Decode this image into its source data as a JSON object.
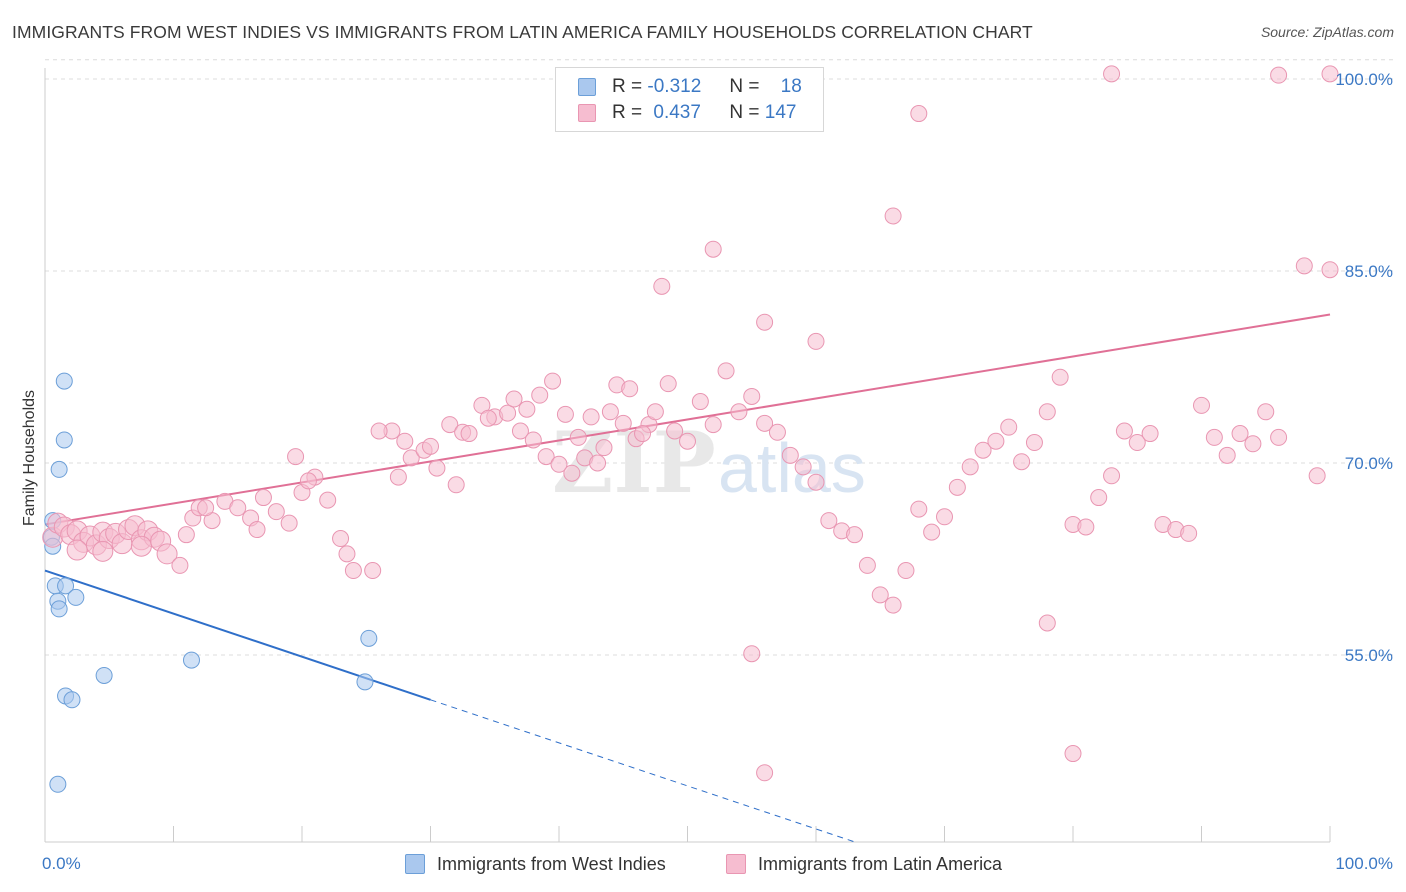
{
  "title": "IMMIGRANTS FROM WEST INDIES VS IMMIGRANTS FROM LATIN AMERICA FAMILY HOUSEHOLDS CORRELATION CHART",
  "source": "Source: ZipAtlas.com",
  "watermark": {
    "zip": "ZIP",
    "atlas": "atlas"
  },
  "colors": {
    "west_indies_fill": "#aac8ee",
    "west_indies_stroke": "#6c9fd8",
    "west_indies_line": "#2f6fc9",
    "latin_fill": "#f6bdd0",
    "latin_stroke": "#e996b2",
    "latin_line": "#e07096",
    "tick_label": "#3b78c4",
    "grid": "#dcdcdc"
  },
  "legend": {
    "rows": [
      {
        "r_label": "R =",
        "r_value": "-0.312",
        "n_label": "N =",
        "n_value": "18"
      },
      {
        "r_label": "R =",
        "r_value": "0.437",
        "n_label": "N =",
        "n_value": "147"
      }
    ]
  },
  "chart_data": {
    "type": "scatter",
    "title": "IMMIGRANTS FROM WEST INDIES VS IMMIGRANTS FROM LATIN AMERICA FAMILY HOUSEHOLDS CORRELATION CHART",
    "xlabel": "",
    "ylabel": "Family Households",
    "xlim": [
      0,
      100
    ],
    "ylim": [
      38,
      102
    ],
    "x_tick_labels": [
      "0.0%",
      "100.0%"
    ],
    "y_ticks": [
      55,
      70,
      85,
      100
    ],
    "y_tick_labels": [
      "55.0%",
      "70.0%",
      "85.0%",
      "100.0%"
    ],
    "grid": true,
    "legend_position": "top-center",
    "series": [
      {
        "name": "Immigrants from West Indies",
        "points": [
          [
            0.5,
            64.2
          ],
          [
            0.6,
            63.5
          ],
          [
            0.6,
            65.5
          ],
          [
            1.1,
            69.5
          ],
          [
            1.5,
            71.8
          ],
          [
            1.5,
            76.4
          ],
          [
            0.8,
            60.4
          ],
          [
            1.0,
            59.2
          ],
          [
            1.1,
            58.6
          ],
          [
            1.6,
            60.4
          ],
          [
            2.4,
            59.5
          ],
          [
            11.4,
            54.6
          ],
          [
            4.6,
            53.4
          ],
          [
            1.6,
            51.8
          ],
          [
            2.1,
            51.5
          ],
          [
            1.0,
            44.9
          ],
          [
            25.2,
            56.3
          ],
          [
            24.9,
            52.9
          ]
        ],
        "trend": {
          "x": [
            0,
            30
          ],
          "y": [
            61.6,
            51.5
          ],
          "dashed_to": [
            63,
            40.4
          ]
        }
      },
      {
        "name": "Immigrants from Latin America",
        "points": [
          [
            0.6,
            64.2
          ],
          [
            1.0,
            65.3
          ],
          [
            1.5,
            65.0
          ],
          [
            2.0,
            64.4
          ],
          [
            2.5,
            64.7
          ],
          [
            3.0,
            63.8
          ],
          [
            3.5,
            64.3
          ],
          [
            4.0,
            63.6
          ],
          [
            4.5,
            64.6
          ],
          [
            5.0,
            64.1
          ],
          [
            5.5,
            64.5
          ],
          [
            6.0,
            63.7
          ],
          [
            6.5,
            64.8
          ],
          [
            7.0,
            65.1
          ],
          [
            7.5,
            64.0
          ],
          [
            8.0,
            64.7
          ],
          [
            8.5,
            64.2
          ],
          [
            9.0,
            63.9
          ],
          [
            2.5,
            63.2
          ],
          [
            4.5,
            63.1
          ],
          [
            7.5,
            63.5
          ],
          [
            9.5,
            62.9
          ],
          [
            10.5,
            62.0
          ],
          [
            11.0,
            64.4
          ],
          [
            11.5,
            65.7
          ],
          [
            12.0,
            66.5
          ],
          [
            13.0,
            65.5
          ],
          [
            14.0,
            67.0
          ],
          [
            15.0,
            66.5
          ],
          [
            16.0,
            65.7
          ],
          [
            17.0,
            67.3
          ],
          [
            18.0,
            66.2
          ],
          [
            19.0,
            65.3
          ],
          [
            20.0,
            67.7
          ],
          [
            21.0,
            68.9
          ],
          [
            22.0,
            67.1
          ],
          [
            12.5,
            66.5
          ],
          [
            16.5,
            64.8
          ],
          [
            19.5,
            70.5
          ],
          [
            20.5,
            68.6
          ],
          [
            23.0,
            64.1
          ],
          [
            23.5,
            62.9
          ],
          [
            24.0,
            61.6
          ],
          [
            25.5,
            61.6
          ],
          [
            27.0,
            72.5
          ],
          [
            28.0,
            71.7
          ],
          [
            28.5,
            70.4
          ],
          [
            29.5,
            71.0
          ],
          [
            30.5,
            69.6
          ],
          [
            31.5,
            73.0
          ],
          [
            32.5,
            72.4
          ],
          [
            33.0,
            72.3
          ],
          [
            34.0,
            74.5
          ],
          [
            35.0,
            73.6
          ],
          [
            36.0,
            73.9
          ],
          [
            37.0,
            72.5
          ],
          [
            38.0,
            71.8
          ],
          [
            39.0,
            70.5
          ],
          [
            40.0,
            69.9
          ],
          [
            41.0,
            69.2
          ],
          [
            42.0,
            70.4
          ],
          [
            43.0,
            70.0
          ],
          [
            44.0,
            74.0
          ],
          [
            45.0,
            73.1
          ],
          [
            46.0,
            71.9
          ],
          [
            47.0,
            73.0
          ],
          [
            26.0,
            72.5
          ],
          [
            27.5,
            68.9
          ],
          [
            30.0,
            71.3
          ],
          [
            32.0,
            68.3
          ],
          [
            34.5,
            73.5
          ],
          [
            36.5,
            75.0
          ],
          [
            37.5,
            74.2
          ],
          [
            38.5,
            75.3
          ],
          [
            39.5,
            76.4
          ],
          [
            40.5,
            73.8
          ],
          [
            41.5,
            72.0
          ],
          [
            42.5,
            73.6
          ],
          [
            43.5,
            71.2
          ],
          [
            44.5,
            76.1
          ],
          [
            45.5,
            75.8
          ],
          [
            46.5,
            72.3
          ],
          [
            47.5,
            74.0
          ],
          [
            48.5,
            76.2
          ],
          [
            49.0,
            72.5
          ],
          [
            50.0,
            71.7
          ],
          [
            51.0,
            74.8
          ],
          [
            52.0,
            73.0
          ],
          [
            53.0,
            77.2
          ],
          [
            54.0,
            74.0
          ],
          [
            55.0,
            75.2
          ],
          [
            56.0,
            73.1
          ],
          [
            57.0,
            72.4
          ],
          [
            58.0,
            70.6
          ],
          [
            59.0,
            69.7
          ],
          [
            60.0,
            68.5
          ],
          [
            61.0,
            65.5
          ],
          [
            62.0,
            64.7
          ],
          [
            63.0,
            64.4
          ],
          [
            64.0,
            62.0
          ],
          [
            65.0,
            59.7
          ],
          [
            66.0,
            58.9
          ],
          [
            67.0,
            61.6
          ],
          [
            68.0,
            66.4
          ],
          [
            69.0,
            64.6
          ],
          [
            70.0,
            65.8
          ],
          [
            71.0,
            68.1
          ],
          [
            72.0,
            69.7
          ],
          [
            73.0,
            71.0
          ],
          [
            74.0,
            71.7
          ],
          [
            75.0,
            72.8
          ],
          [
            76.0,
            70.1
          ],
          [
            77.0,
            71.6
          ],
          [
            78.0,
            74.0
          ],
          [
            79.0,
            76.7
          ],
          [
            80.0,
            65.2
          ],
          [
            81.0,
            65.0
          ],
          [
            82.0,
            67.3
          ],
          [
            83.0,
            69.0
          ],
          [
            84.0,
            72.5
          ],
          [
            85.0,
            71.6
          ],
          [
            86.0,
            72.3
          ],
          [
            87.0,
            65.2
          ],
          [
            88.0,
            64.8
          ],
          [
            89.0,
            64.5
          ],
          [
            90.0,
            74.5
          ],
          [
            91.0,
            72.0
          ],
          [
            92.0,
            70.6
          ],
          [
            93.0,
            72.3
          ],
          [
            94.0,
            71.5
          ],
          [
            95.0,
            74.0
          ],
          [
            96.0,
            72.0
          ],
          [
            48.0,
            83.8
          ],
          [
            52.0,
            86.7
          ],
          [
            56.0,
            81.0
          ],
          [
            60.0,
            79.5
          ],
          [
            66.0,
            89.3
          ],
          [
            68.0,
            97.3
          ],
          [
            83.0,
            100.4
          ],
          [
            96.0,
            100.3
          ],
          [
            100.0,
            100.4
          ],
          [
            100.0,
            85.1
          ],
          [
            98.0,
            85.4
          ],
          [
            99.0,
            69.0
          ],
          [
            55.0,
            55.1
          ],
          [
            56.0,
            45.8
          ],
          [
            78.0,
            57.5
          ],
          [
            80.0,
            47.3
          ]
        ],
        "trend": {
          "x": [
            0,
            100
          ],
          "y": [
            65.2,
            81.6
          ]
        }
      }
    ]
  },
  "bottom_legend": {
    "items": [
      {
        "label": "Immigrants from West Indies"
      },
      {
        "label": "Immigrants from Latin America"
      }
    ]
  }
}
